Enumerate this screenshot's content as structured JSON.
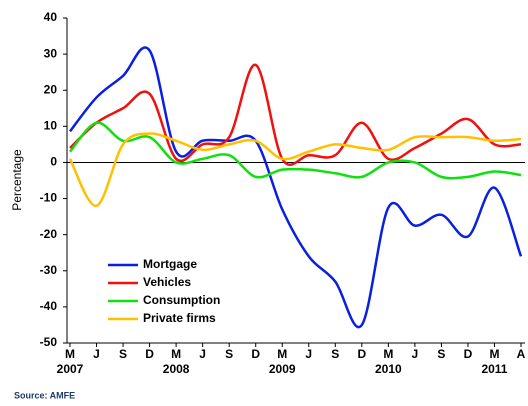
{
  "chart_data": {
    "type": "line",
    "y_label": "Percentage",
    "source": "Source: AMFE",
    "categories": [
      "M",
      "J",
      "S",
      "D",
      "M",
      "J",
      "S",
      "D",
      "M",
      "J",
      "S",
      "D",
      "M",
      "J",
      "S",
      "D",
      "M",
      "A"
    ],
    "year_labels": [
      "2007",
      null,
      null,
      null,
      "2008",
      null,
      null,
      null,
      "2009",
      null,
      null,
      null,
      "2010",
      null,
      null,
      null,
      "2011",
      null
    ],
    "series": [
      {
        "name": "Mortgage",
        "color": "#0a1fe0",
        "values": [
          8.6,
          18,
          24,
          31,
          3,
          6,
          6,
          6,
          -13,
          -26,
          -33,
          -45,
          -12.5,
          -17.5,
          -14.5,
          -20.5,
          -7,
          -26
        ]
      },
      {
        "name": "Vehicles",
        "color": "#f01010",
        "values": [
          4,
          11,
          15,
          19,
          1,
          5,
          7,
          27,
          1,
          2,
          2,
          11,
          1,
          4,
          8,
          12,
          5,
          5
        ]
      },
      {
        "name": "Consumption",
        "color": "#10e010",
        "values": [
          3,
          11,
          6,
          7,
          0,
          1,
          2,
          -4,
          -2,
          -2,
          -3,
          -4,
          0,
          0,
          -4,
          -4,
          -2.5,
          -3.5
        ]
      },
      {
        "name": "Private firms",
        "color": "#ffc000",
        "values": [
          1,
          -12,
          5,
          8,
          6,
          3.5,
          5,
          6,
          1,
          3,
          5,
          4,
          3.5,
          7,
          7,
          7,
          6,
          6.5
        ]
      }
    ],
    "ylim": [
      -50,
      40
    ],
    "yticks": [
      -50,
      -40,
      -30,
      -20,
      -10,
      0,
      10,
      20,
      30,
      40
    ],
    "legend": "lower-left"
  }
}
